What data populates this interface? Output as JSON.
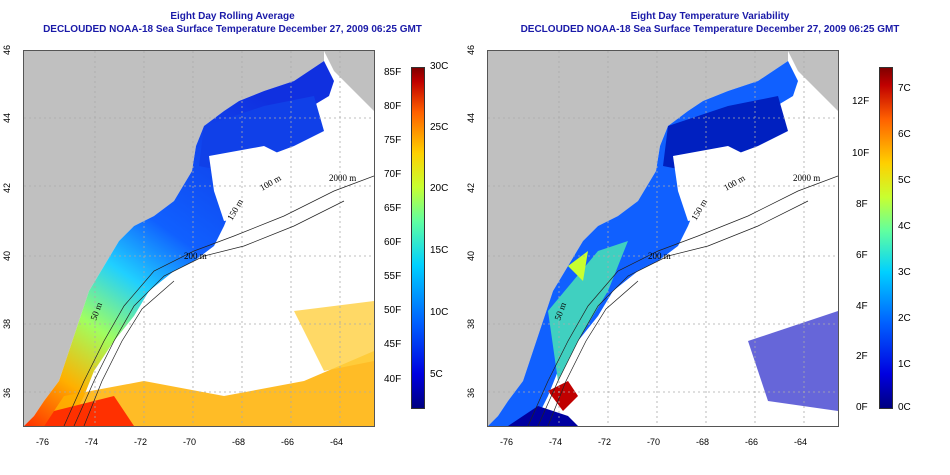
{
  "panels": [
    {
      "title_line1": "Eight Day Rolling Average",
      "title_line2": "DECLOUDED NOAA-18 Sea Surface Temperature December 27, 2009 06:25 GMT",
      "contour_labels": [
        "2000 m",
        "200 m",
        "50 m",
        "150 m",
        "100 m"
      ],
      "colorbar_f": [
        "85F",
        "80F",
        "75F",
        "70F",
        "65F",
        "60F",
        "55F",
        "50F",
        "45F",
        "40F"
      ],
      "colorbar_c": [
        "30C",
        "25C",
        "20C",
        "15C",
        "10C",
        "5C"
      ]
    },
    {
      "title_line1": "Eight Day Temperature Variability",
      "title_line2": "DECLOUDED NOAA-18 Sea Surface Temperature December 27, 2009 06:25 GMT",
      "contour_labels": [
        "2000 m",
        "200 m",
        "50 m",
        "150 m",
        "100 m"
      ],
      "colorbar_f": [
        "12F",
        "10F",
        "8F",
        "6F",
        "4F",
        "2F",
        "0F"
      ],
      "colorbar_c": [
        "7C",
        "6C",
        "5C",
        "4C",
        "3C",
        "2C",
        "1C",
        "0C"
      ]
    }
  ],
  "axes": {
    "x_ticks": [
      "-76",
      "-74",
      "-72",
      "-70",
      "-68",
      "-66",
      "-64"
    ],
    "y_ticks": [
      "46",
      "44",
      "42",
      "40",
      "38",
      "36"
    ]
  },
  "colors": {
    "title": "#1a1aa8",
    "land": "#c0c0c0"
  }
}
